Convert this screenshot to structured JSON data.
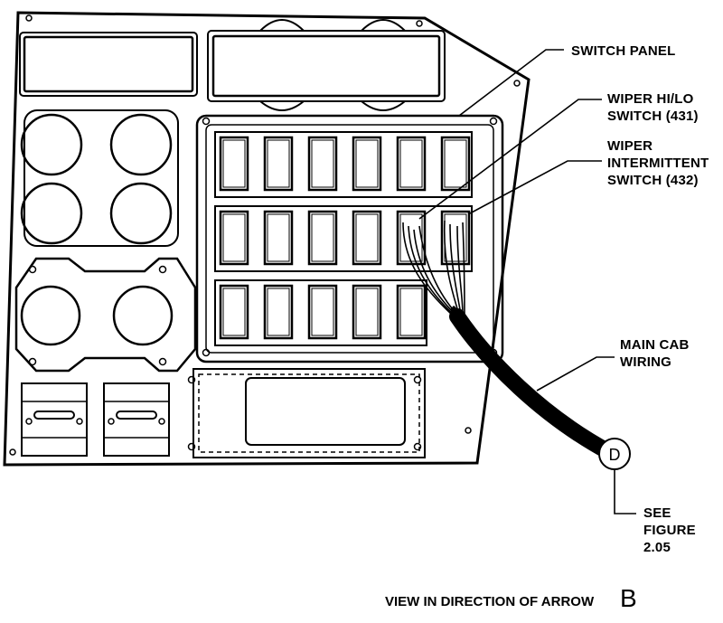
{
  "labels": {
    "switch_panel": "SWITCH PANEL",
    "wiper_hilo_1": "WIPER HI/LO",
    "wiper_hilo_2": "SWITCH (431)",
    "wiper_int_1": "WIPER",
    "wiper_int_2": "INTERMITTENT",
    "wiper_int_3": "SWITCH (432)",
    "main_cab_1": "MAIN CAB",
    "main_cab_2": "WIRING",
    "see_1": "SEE",
    "see_2": "FIGURE",
    "see_3": "2.05",
    "detail_letter": "D"
  },
  "caption": {
    "text": "VIEW IN DIRECTION OF ARROW",
    "arrow_letter": "B"
  },
  "colors": {
    "ink": "#000000",
    "paper": "#ffffff"
  }
}
